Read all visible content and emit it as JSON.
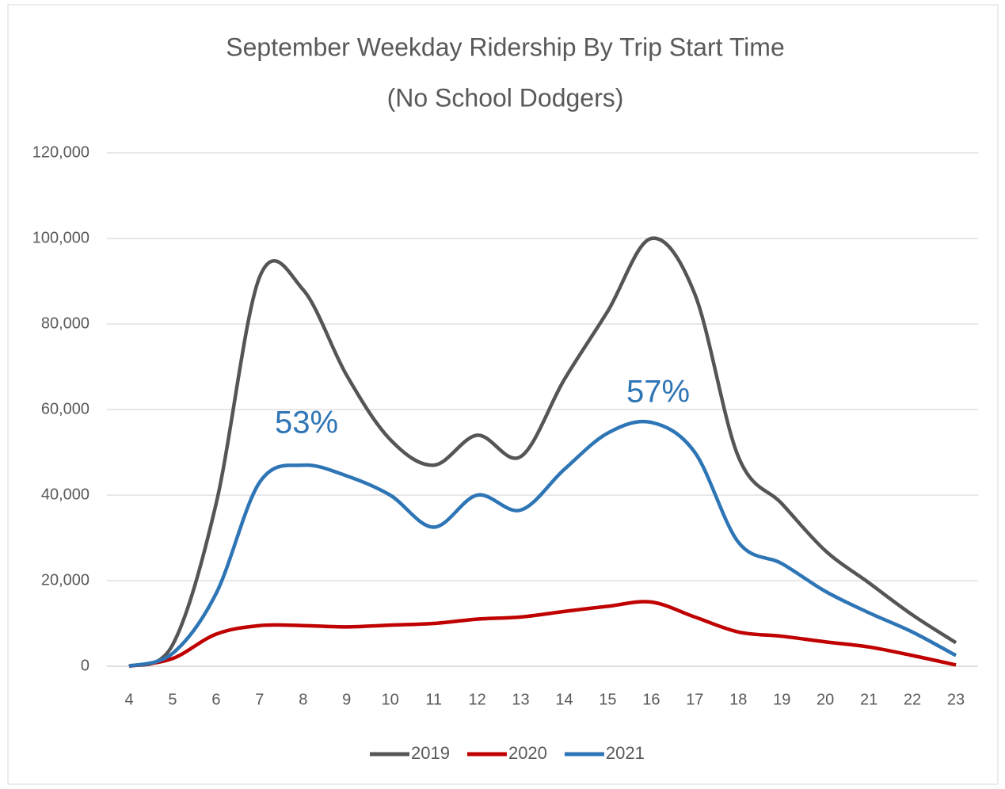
{
  "chart_data": {
    "type": "line",
    "title": "September Weekday Ridership By Trip Start Time",
    "subtitle": "(No School Dodgers)",
    "x": [
      4,
      5,
      6,
      7,
      8,
      9,
      10,
      11,
      12,
      13,
      14,
      15,
      16,
      17,
      18,
      19,
      20,
      21,
      22,
      23
    ],
    "xlim": [
      4,
      23
    ],
    "series": [
      {
        "name": "2019",
        "color": "#555555",
        "values": [
          0,
          5000,
          38000,
          91000,
          88000,
          68000,
          53000,
          47000,
          54000,
          49000,
          67000,
          83000,
          100000,
          87000,
          49000,
          38000,
          27000,
          19500,
          12000,
          5500
        ]
      },
      {
        "name": "2020",
        "color": "#c00000",
        "values": [
          0,
          1800,
          7500,
          9500,
          9500,
          9200,
          9600,
          10000,
          11000,
          11500,
          12800,
          14000,
          15000,
          11500,
          8000,
          7000,
          5700,
          4500,
          2500,
          300
        ]
      },
      {
        "name": "2021",
        "color": "#2e75b6",
        "values": [
          0,
          3000,
          17000,
          43000,
          47000,
          44500,
          40000,
          32500,
          40000,
          36500,
          46000,
          54500,
          57000,
          50000,
          29000,
          24000,
          17500,
          12500,
          8000,
          2500
        ]
      }
    ],
    "ylim": [
      0,
      120000
    ],
    "yticks": [
      0,
      {
        "value": 20000,
        "label": "20,000"
      },
      {
        "value": 40000,
        "label": "40,000"
      },
      {
        "value": 60000,
        "label": "60,000"
      },
      {
        "value": 80000,
        "label": "80,000"
      },
      {
        "value": 100000,
        "label": "100,000"
      },
      {
        "value": 120000,
        "label": "120,000"
      }
    ],
    "grid": true,
    "legend": "bottom",
    "annotations": [
      {
        "text": "53%",
        "color": "#2e75b6"
      },
      {
        "text": "57%",
        "color": "#2e75b6"
      }
    ]
  }
}
